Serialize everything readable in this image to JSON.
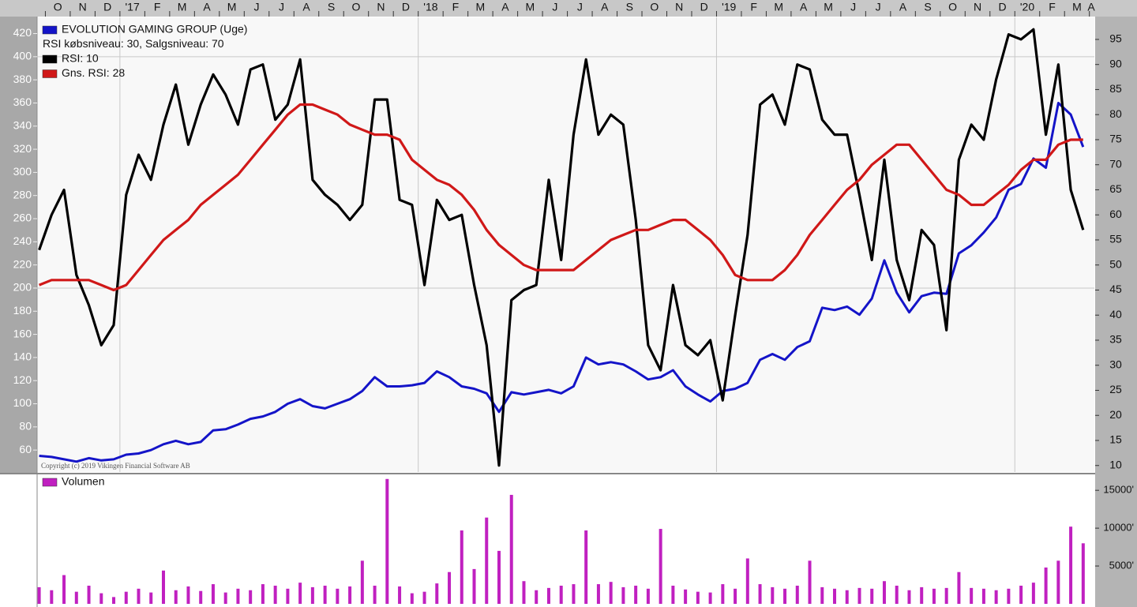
{
  "chart_data": [
    {
      "type": "line",
      "subtitle": "RSI købsniveau: 30, Salgsniveau: 70",
      "annotation": "Copyright (c) 2019 Vikingen Financial Software AB",
      "xlim": [
        -0.3,
        42.2
      ],
      "xticks": [
        {
          "value": 0,
          "label": "O"
        },
        {
          "value": 1,
          "label": "N"
        },
        {
          "value": 2,
          "label": "D"
        },
        {
          "value": 3,
          "label": "'17"
        },
        {
          "value": 4,
          "label": "F"
        },
        {
          "value": 5,
          "label": "M"
        },
        {
          "value": 6,
          "label": "A"
        },
        {
          "value": 7,
          "label": "M"
        },
        {
          "value": 8,
          "label": "J"
        },
        {
          "value": 9,
          "label": "J"
        },
        {
          "value": 10,
          "label": "A"
        },
        {
          "value": 11,
          "label": "S"
        },
        {
          "value": 12,
          "label": "O"
        },
        {
          "value": 13,
          "label": "N"
        },
        {
          "value": 14,
          "label": "D"
        },
        {
          "value": 15,
          "label": "'18"
        },
        {
          "value": 16,
          "label": "F"
        },
        {
          "value": 17,
          "label": "M"
        },
        {
          "value": 18,
          "label": "A"
        },
        {
          "value": 19,
          "label": "M"
        },
        {
          "value": 20,
          "label": "J"
        },
        {
          "value": 21,
          "label": "J"
        },
        {
          "value": 22,
          "label": "A"
        },
        {
          "value": 23,
          "label": "S"
        },
        {
          "value": 24,
          "label": "O"
        },
        {
          "value": 25,
          "label": "N"
        },
        {
          "value": 26,
          "label": "D"
        },
        {
          "value": 27,
          "label": "'19"
        },
        {
          "value": 28,
          "label": "F"
        },
        {
          "value": 29,
          "label": "M"
        },
        {
          "value": 30,
          "label": "A"
        },
        {
          "value": 31,
          "label": "M"
        },
        {
          "value": 32,
          "label": "J"
        },
        {
          "value": 33,
          "label": "J"
        },
        {
          "value": 34,
          "label": "A"
        },
        {
          "value": 35,
          "label": "S"
        },
        {
          "value": 36,
          "label": "O"
        },
        {
          "value": 37,
          "label": "N"
        },
        {
          "value": 38,
          "label": "D"
        },
        {
          "value": 39,
          "label": "'20"
        },
        {
          "value": 40,
          "label": "F"
        },
        {
          "value": 41,
          "label": "M"
        },
        {
          "value": 42,
          "label": "A"
        }
      ],
      "xgrid": [
        3,
        15,
        27,
        39
      ],
      "ylim": [
        41,
        434
      ],
      "yticks": [
        60,
        80,
        100,
        120,
        140,
        160,
        180,
        200,
        220,
        240,
        260,
        280,
        300,
        320,
        340,
        360,
        380,
        400,
        420
      ],
      "ygrid": [
        200,
        400
      ],
      "y2lim": [
        8.7,
        99.4
      ],
      "y2ticks": [
        10,
        15,
        20,
        25,
        30,
        35,
        40,
        45,
        50,
        55,
        60,
        65,
        70,
        75,
        80,
        85,
        90,
        95
      ],
      "x": [
        -0.25,
        0.25,
        0.75,
        1.25,
        1.75,
        2.25,
        2.75,
        3.25,
        3.75,
        4.25,
        4.75,
        5.25,
        5.75,
        6.25,
        6.75,
        7.25,
        7.75,
        8.25,
        8.75,
        9.25,
        9.75,
        10.25,
        10.75,
        11.25,
        11.75,
        12.25,
        12.75,
        13.25,
        13.75,
        14.25,
        14.75,
        15.25,
        15.75,
        16.25,
        16.75,
        17.25,
        17.75,
        18.25,
        18.75,
        19.25,
        19.75,
        20.25,
        20.75,
        21.25,
        21.75,
        22.25,
        22.75,
        23.25,
        23.75,
        24.25,
        24.75,
        25.25,
        25.75,
        26.25,
        26.75,
        27.25,
        27.75,
        28.25,
        28.75,
        29.25,
        29.75,
        30.25,
        30.75,
        31.25,
        31.75,
        32.25,
        32.75,
        33.25,
        33.75,
        34.25,
        34.75,
        35.25,
        35.75,
        36.25,
        36.75,
        37.25,
        37.75,
        38.25,
        38.75,
        39.25,
        39.75,
        40.25,
        40.75,
        41.25,
        41.75
      ],
      "series": [
        {
          "name": "EVOLUTION GAMING GROUP (Uge)",
          "color": "#1414c8",
          "axis": "y",
          "values": [
            55,
            54,
            52,
            50,
            53,
            51,
            52,
            56,
            57,
            60,
            65,
            68,
            65,
            67,
            77,
            78,
            82,
            87,
            89,
            93,
            100,
            104,
            98,
            96,
            100,
            104,
            111,
            123,
            115,
            115,
            116,
            118,
            128,
            123,
            115,
            113,
            109,
            93,
            110,
            108,
            110,
            112,
            109,
            115,
            140,
            134,
            136,
            134,
            128,
            121,
            123,
            129,
            115,
            108,
            102,
            111,
            113,
            118,
            138,
            143,
            138,
            149,
            154,
            183,
            181,
            184,
            177,
            191,
            224,
            196,
            179,
            193,
            196,
            195,
            230,
            237,
            248,
            261,
            285,
            290,
            312,
            304,
            360,
            350,
            322
          ]
        },
        {
          "name": "RSI: 10",
          "color": "#000000",
          "axis": "y2",
          "values": [
            53,
            60,
            65,
            48,
            42,
            34,
            38,
            64,
            72,
            67,
            78,
            86,
            74,
            82,
            88,
            84,
            78,
            89,
            90,
            79,
            82,
            91,
            67,
            64,
            62,
            59,
            62,
            83,
            83,
            63,
            62,
            46,
            63,
            59,
            60,
            46,
            34,
            10,
            43,
            45,
            46,
            67,
            51,
            76,
            91,
            76,
            80,
            78,
            59,
            34,
            29,
            46,
            34,
            32,
            35,
            23,
            40,
            56,
            82,
            84,
            78,
            90,
            89,
            79,
            76,
            76,
            64,
            51,
            71,
            51,
            43,
            57,
            54,
            37,
            71,
            78,
            75,
            87,
            96,
            95,
            97,
            76,
            90,
            65,
            57
          ]
        },
        {
          "name": "Gns. RSI: 28",
          "color": "#d01818",
          "axis": "y2",
          "values": [
            46,
            47,
            47,
            47,
            47,
            46,
            45,
            46,
            49,
            52,
            55,
            57,
            59,
            62,
            64,
            66,
            68,
            71,
            74,
            77,
            80,
            82,
            82,
            81,
            80,
            78,
            77,
            76,
            76,
            75,
            71,
            69,
            67,
            66,
            64,
            61,
            57,
            54,
            52,
            50,
            49,
            49,
            49,
            49,
            51,
            53,
            55,
            56,
            57,
            57,
            58,
            59,
            59,
            57,
            55,
            52,
            48,
            47,
            47,
            47,
            49,
            52,
            56,
            59,
            62,
            65,
            67,
            70,
            72,
            74,
            74,
            71,
            68,
            65,
            64,
            62,
            62,
            64,
            66,
            69,
            71,
            71,
            74,
            75,
            75
          ]
        }
      ]
    },
    {
      "type": "bar",
      "xlim": [
        -0.3,
        42.2
      ],
      "ylim": [
        0,
        17000
      ],
      "yticks": [
        {
          "value": 5000,
          "label": "5000'"
        },
        {
          "value": 10000,
          "label": "10000'"
        },
        {
          "value": 15000,
          "label": "15000'"
        }
      ],
      "x": [
        -0.25,
        0.25,
        0.75,
        1.25,
        1.75,
        2.25,
        2.75,
        3.25,
        3.75,
        4.25,
        4.75,
        5.25,
        5.75,
        6.25,
        6.75,
        7.25,
        7.75,
        8.25,
        8.75,
        9.25,
        9.75,
        10.25,
        10.75,
        11.25,
        11.75,
        12.25,
        12.75,
        13.25,
        13.75,
        14.25,
        14.75,
        15.25,
        15.75,
        16.25,
        16.75,
        17.25,
        17.75,
        18.25,
        18.75,
        19.25,
        19.75,
        20.25,
        20.75,
        21.25,
        21.75,
        22.25,
        22.75,
        23.25,
        23.75,
        24.25,
        24.75,
        25.25,
        25.75,
        26.25,
        26.75,
        27.25,
        27.75,
        28.25,
        28.75,
        29.25,
        29.75,
        30.25,
        30.75,
        31.25,
        31.75,
        32.25,
        32.75,
        33.25,
        33.75,
        34.25,
        34.75,
        35.25,
        35.75,
        36.25,
        36.75,
        37.25,
        37.75,
        38.25,
        38.75,
        39.25,
        39.75,
        40.25,
        40.75,
        41.25,
        41.75
      ],
      "series": [
        {
          "name": "Volumen",
          "color": "#c020c0",
          "values": [
            2200,
            1800,
            3800,
            1600,
            2400,
            1400,
            900,
            1600,
            2000,
            1500,
            4400,
            1800,
            2300,
            1700,
            2600,
            1500,
            2000,
            1800,
            2600,
            2400,
            2000,
            2800,
            2200,
            2400,
            2000,
            2300,
            5700,
            2400,
            16500,
            2300,
            1400,
            1600,
            2700,
            4200,
            9700,
            4600,
            11400,
            7000,
            14400,
            3000,
            1800,
            2100,
            2400,
            2600,
            9700,
            2600,
            2900,
            2200,
            2400,
            2000,
            9900,
            2400,
            1900,
            1600,
            1500,
            2600,
            2000,
            6000,
            2600,
            2200,
            2000,
            2400,
            5700,
            2200,
            2000,
            1800,
            2100,
            2000,
            3000,
            2400,
            1800,
            2200,
            2000,
            2100,
            4200,
            2100,
            2000,
            1800,
            2000,
            2400,
            2800,
            4800,
            5700,
            10200,
            8000
          ]
        }
      ]
    }
  ]
}
